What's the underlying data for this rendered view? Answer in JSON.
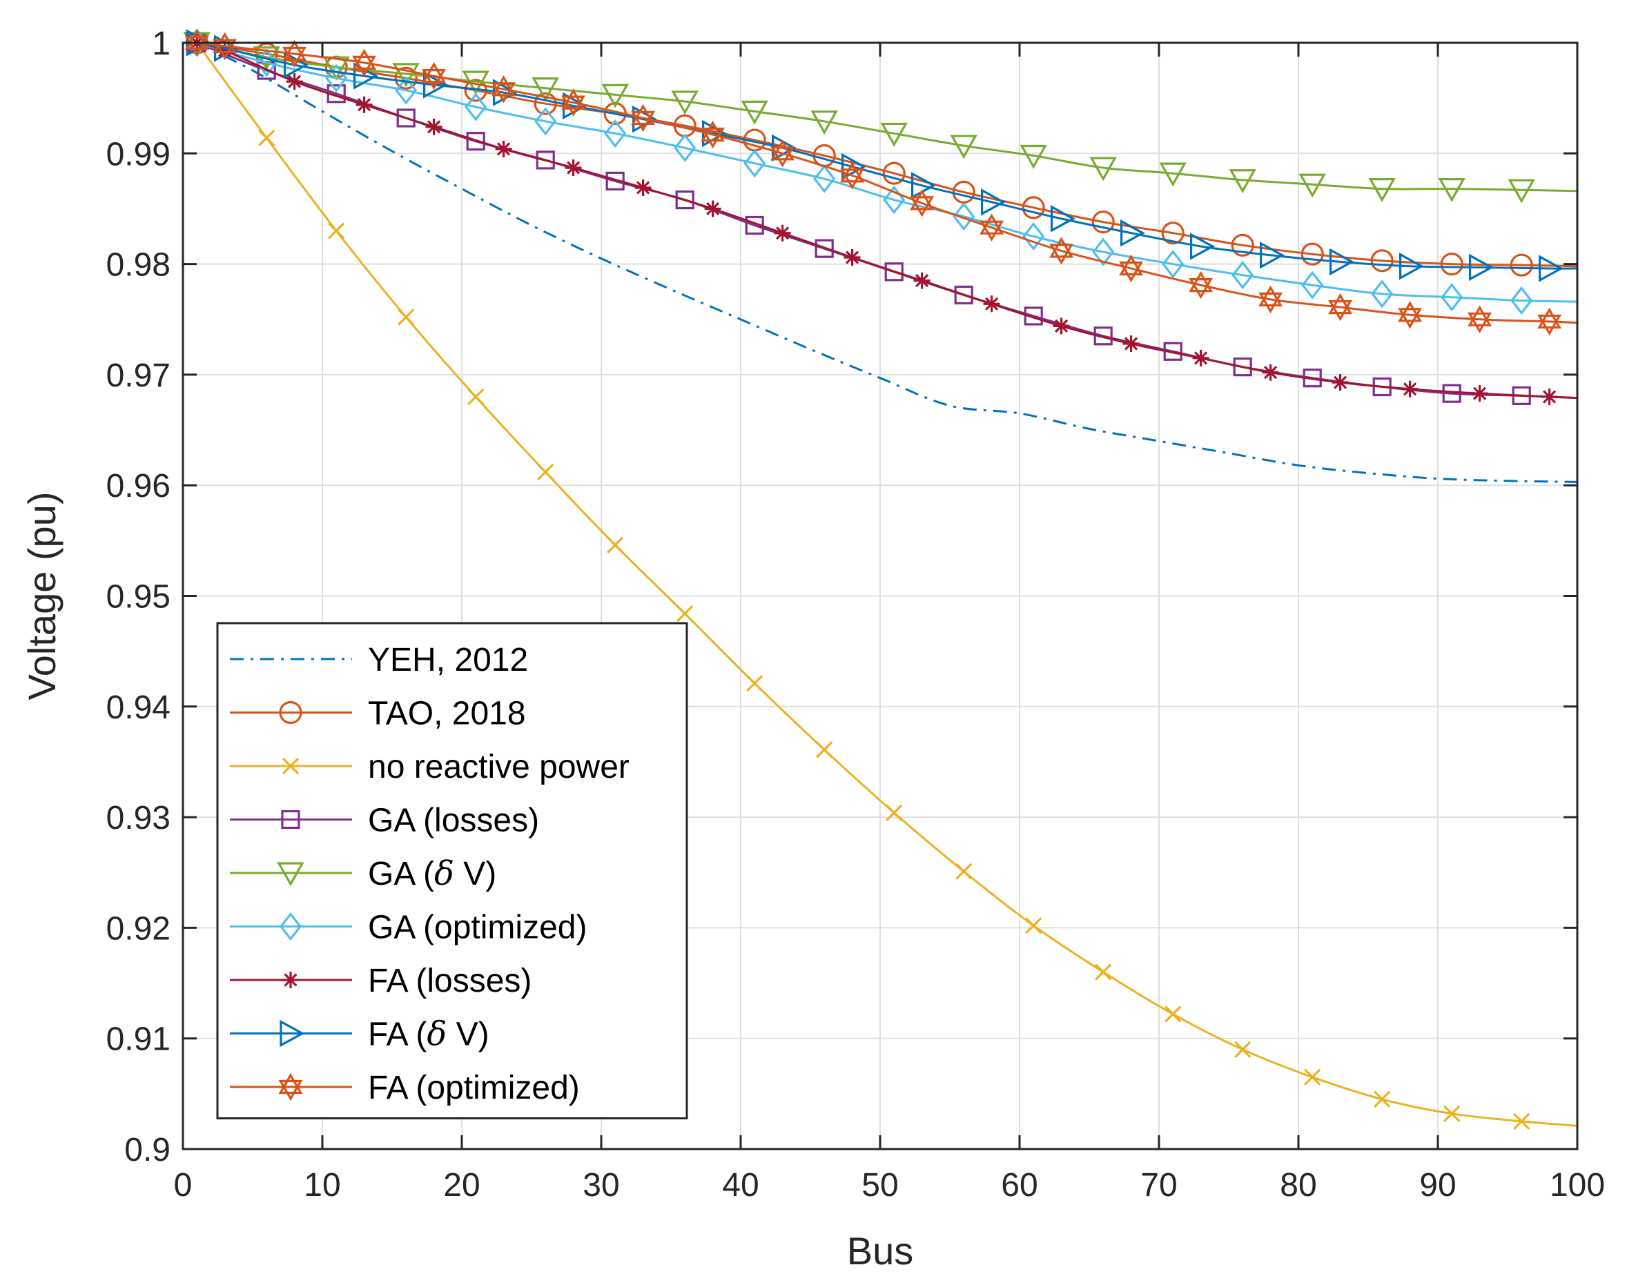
{
  "chart_data": {
    "type": "line",
    "title": "",
    "xlabel": "Bus",
    "ylabel": "Voltage (pu)",
    "xlim": [
      0,
      100
    ],
    "ylim": [
      0.9,
      1.0
    ],
    "xticks": [
      0,
      10,
      20,
      30,
      40,
      50,
      60,
      70,
      80,
      90,
      100
    ],
    "yticks": [
      0.9,
      0.91,
      0.92,
      0.93,
      0.94,
      0.95,
      0.96,
      0.97,
      0.98,
      0.99,
      1.0
    ],
    "xtick_labels": [
      "0",
      "10",
      "20",
      "30",
      "40",
      "50",
      "60",
      "70",
      "80",
      "90",
      "100"
    ],
    "ytick_labels": [
      "0.9",
      "0.91",
      "0.92",
      "0.93",
      "0.94",
      "0.95",
      "0.96",
      "0.97",
      "0.98",
      "0.99",
      "1"
    ],
    "grid": true,
    "legend_position": "bottom-left",
    "series": [
      {
        "name": "YEH, 2012",
        "legend_label": "YEH, 2012",
        "color": "#0072BD",
        "line": "dashdot",
        "marker": "none",
        "x": [
          1,
          5,
          10,
          15,
          20,
          25,
          30,
          35,
          40,
          45,
          50,
          55,
          60,
          65,
          70,
          75,
          80,
          85,
          90,
          95,
          100
        ],
        "y": [
          1.0,
          0.9975,
          0.9938,
          0.9902,
          0.9868,
          0.9835,
          0.9805,
          0.9777,
          0.975,
          0.9723,
          0.9697,
          0.9672,
          0.9665,
          0.9651,
          0.964,
          0.9629,
          0.9618,
          0.9611,
          0.9606,
          0.9604,
          0.9603
        ]
      },
      {
        "name": "TAO, 2018",
        "legend_label": "TAO, 2018",
        "color": "#D95319",
        "line": "solid",
        "marker": "circle",
        "x": [
          1,
          6,
          11,
          16,
          21,
          26,
          31,
          36,
          41,
          46,
          51,
          56,
          61,
          66,
          71,
          76,
          81,
          86,
          91,
          96,
          100
        ],
        "y": [
          1.0,
          0.999,
          0.9978,
          0.9968,
          0.9957,
          0.9945,
          0.9936,
          0.9925,
          0.9912,
          0.9898,
          0.9882,
          0.9865,
          0.9851,
          0.9838,
          0.9828,
          0.9817,
          0.9809,
          0.9803,
          0.98,
          0.9799,
          0.9798
        ]
      },
      {
        "name": "no reactive power",
        "legend_label": "no reactive power",
        "color": "#EDB120",
        "line": "solid",
        "marker": "x",
        "x": [
          1,
          6,
          11,
          16,
          21,
          26,
          31,
          36,
          41,
          46,
          51,
          56,
          61,
          66,
          71,
          76,
          81,
          86,
          91,
          96,
          100
        ],
        "y": [
          1.0,
          0.9914,
          0.983,
          0.9752,
          0.968,
          0.9612,
          0.9546,
          0.9484,
          0.9421,
          0.9361,
          0.9304,
          0.9251,
          0.9202,
          0.916,
          0.9122,
          0.909,
          0.9065,
          0.9045,
          0.9032,
          0.9025,
          0.9021
        ]
      },
      {
        "name": "GA (losses)",
        "legend_label": "GA (losses)",
        "color": "#7E2F8E",
        "line": "solid",
        "marker": "square",
        "x": [
          1,
          6,
          11,
          16,
          21,
          26,
          31,
          36,
          41,
          46,
          51,
          56,
          61,
          66,
          71,
          76,
          81,
          86,
          91,
          96,
          100
        ],
        "y": [
          1.0,
          0.9975,
          0.9954,
          0.9932,
          0.9911,
          0.9894,
          0.9875,
          0.9858,
          0.9835,
          0.9814,
          0.9793,
          0.9772,
          0.9753,
          0.9735,
          0.9721,
          0.9707,
          0.9697,
          0.9689,
          0.9683,
          0.9681,
          0.9679
        ]
      },
      {
        "name": "GA (δ V)",
        "legend_label": "GA (",
        "legend_label_greek": "δ",
        "legend_label_rest": " V)",
        "color": "#77AC30",
        "line": "solid",
        "marker": "triangle-down",
        "x": [
          1,
          6,
          11,
          16,
          21,
          26,
          31,
          36,
          41,
          46,
          51,
          56,
          61,
          66,
          71,
          76,
          81,
          86,
          91,
          96,
          100
        ],
        "y": [
          1.0,
          0.9987,
          0.9978,
          0.9972,
          0.9965,
          0.9959,
          0.9953,
          0.9947,
          0.9938,
          0.9929,
          0.9918,
          0.9907,
          0.9898,
          0.9887,
          0.9882,
          0.9876,
          0.9872,
          0.9868,
          0.9868,
          0.9867,
          0.9866
        ]
      },
      {
        "name": "GA (optimized)",
        "legend_label": "GA (optimized)",
        "color": "#4DBEEE",
        "line": "solid",
        "marker": "diamond",
        "x": [
          1,
          6,
          11,
          16,
          21,
          26,
          31,
          36,
          41,
          46,
          51,
          56,
          61,
          66,
          71,
          76,
          81,
          86,
          91,
          96,
          100
        ],
        "y": [
          1.0,
          0.9982,
          0.9968,
          0.9957,
          0.9942,
          0.9929,
          0.9918,
          0.9905,
          0.9891,
          0.9877,
          0.9858,
          0.9843,
          0.9825,
          0.9811,
          0.98,
          0.979,
          0.9781,
          0.9773,
          0.977,
          0.9767,
          0.9766
        ]
      },
      {
        "name": "FA (losses)",
        "legend_label": "FA (losses)",
        "color": "#A2142F",
        "line": "solid",
        "marker": "asterisk",
        "x": [
          1,
          3,
          8,
          13,
          18,
          23,
          28,
          33,
          38,
          43,
          48,
          53,
          58,
          63,
          68,
          73,
          78,
          83,
          88,
          93,
          98,
          100
        ],
        "y": [
          1.0,
          0.9993,
          0.9965,
          0.9944,
          0.9924,
          0.9904,
          0.9887,
          0.9869,
          0.985,
          0.9828,
          0.9806,
          0.9785,
          0.9764,
          0.9744,
          0.9728,
          0.9715,
          0.9702,
          0.9693,
          0.9687,
          0.9683,
          0.968,
          0.9679
        ]
      },
      {
        "name": "FA (δ V)",
        "legend_label": "FA (",
        "legend_label_greek": "δ",
        "legend_label_rest": " V)",
        "color": "#0072BD",
        "line": "solid",
        "marker": "triangle-right",
        "x": [
          1,
          3,
          8,
          13,
          18,
          23,
          28,
          33,
          38,
          43,
          48,
          53,
          58,
          63,
          68,
          73,
          78,
          83,
          88,
          93,
          98,
          100
        ],
        "y": [
          1.0,
          0.9995,
          0.998,
          0.997,
          0.9962,
          0.9955,
          0.9943,
          0.9931,
          0.9918,
          0.9905,
          0.9888,
          0.9871,
          0.9856,
          0.9841,
          0.9828,
          0.9816,
          0.9808,
          0.9802,
          0.9798,
          0.9797,
          0.9796,
          0.9796
        ]
      },
      {
        "name": "FA (optimized)",
        "legend_label": "FA (optimized)",
        "color": "#D95319",
        "line": "solid",
        "marker": "hexagram",
        "x": [
          1,
          3,
          8,
          13,
          18,
          23,
          28,
          33,
          38,
          43,
          48,
          53,
          58,
          63,
          68,
          73,
          78,
          83,
          88,
          93,
          98,
          100
        ],
        "y": [
          1.0,
          0.9997,
          0.999,
          0.9982,
          0.997,
          0.9958,
          0.9946,
          0.9932,
          0.9917,
          0.99,
          0.988,
          0.9855,
          0.9833,
          0.9812,
          0.9796,
          0.9781,
          0.9768,
          0.9761,
          0.9754,
          0.975,
          0.9748,
          0.9747
        ]
      }
    ]
  }
}
